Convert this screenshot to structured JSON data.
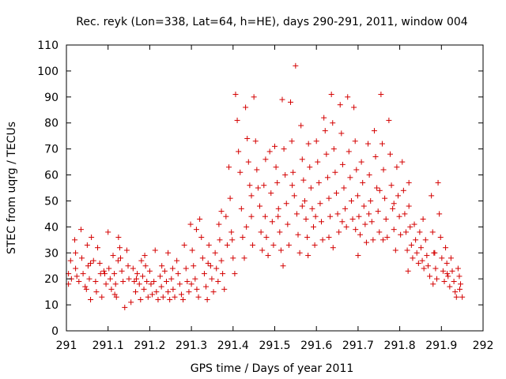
{
  "chart_data": {
    "type": "scatter",
    "title": "Rec. reyk (Lon=338, Lat=64, h=HE), days 290-291, 2011, window 004",
    "xlabel": "GPS time / Days of year 2011",
    "ylabel": "STEC from uqrg / TECUs",
    "xlim": [
      291,
      292
    ],
    "ylim": [
      0,
      110
    ],
    "x_ticks": [
      291,
      291.1,
      291.2,
      291.3,
      291.4,
      291.5,
      291.6,
      291.7,
      291.8,
      291.9,
      292
    ],
    "x_tick_labels": [
      "291",
      "291.1",
      "291.2",
      "291.3",
      "291.4",
      "291.5",
      "291.6",
      "291.7",
      "291.8",
      "291.9",
      "292"
    ],
    "y_ticks": [
      0,
      10,
      20,
      30,
      40,
      50,
      60,
      70,
      80,
      90,
      100,
      110
    ],
    "y_tick_labels": [
      "0",
      "10",
      "20",
      "30",
      "40",
      "50",
      "60",
      "70",
      "80",
      "90",
      "100",
      "110"
    ],
    "grid": false,
    "marker": "plus",
    "marker_color": "#d40000",
    "points": [
      [
        291.005,
        18
      ],
      [
        291.005,
        22
      ],
      [
        291.01,
        27
      ],
      [
        291.012,
        20
      ],
      [
        291.02,
        35
      ],
      [
        291.022,
        24
      ],
      [
        291.025,
        21
      ],
      [
        291.03,
        19
      ],
      [
        291.035,
        39
      ],
      [
        291.037,
        28
      ],
      [
        291.04,
        22
      ],
      [
        291.045,
        17
      ],
      [
        291.05,
        33
      ],
      [
        291.052,
        25
      ],
      [
        291.055,
        20
      ],
      [
        291.058,
        12
      ],
      [
        291.06,
        36
      ],
      [
        291.065,
        27
      ],
      [
        291.07,
        19
      ],
      [
        291.072,
        15
      ],
      [
        291.075,
        32
      ],
      [
        291.08,
        26
      ],
      [
        291.082,
        22
      ],
      [
        291.085,
        13
      ],
      [
        291.09,
        23
      ],
      [
        291.095,
        18
      ],
      [
        291.1,
        38
      ],
      [
        291.102,
        24
      ],
      [
        291.105,
        20
      ],
      [
        291.108,
        16
      ],
      [
        291.112,
        29
      ],
      [
        291.115,
        22
      ],
      [
        291.118,
        18
      ],
      [
        291.12,
        13
      ],
      [
        291.125,
        36
      ],
      [
        291.128,
        32
      ],
      [
        291.13,
        28
      ],
      [
        291.133,
        23
      ],
      [
        291.136,
        19
      ],
      [
        291.14,
        9
      ],
      [
        291.145,
        31
      ],
      [
        291.148,
        25
      ],
      [
        291.15,
        20
      ],
      [
        291.155,
        11
      ],
      [
        291.16,
        24
      ],
      [
        291.163,
        19
      ],
      [
        291.166,
        15
      ],
      [
        291.17,
        22
      ],
      [
        291.175,
        18
      ],
      [
        291.18,
        27
      ],
      [
        291.183,
        21
      ],
      [
        291.186,
        16
      ],
      [
        291.19,
        25
      ],
      [
        291.193,
        19
      ],
      [
        291.196,
        13
      ],
      [
        291.2,
        23
      ],
      [
        291.203,
        18
      ],
      [
        291.206,
        14
      ],
      [
        291.21,
        19
      ],
      [
        291.213,
        31
      ],
      [
        291.216,
        15
      ],
      [
        291.22,
        12
      ],
      [
        291.225,
        21
      ],
      [
        291.228,
        17
      ],
      [
        291.232,
        13
      ],
      [
        291.236,
        23
      ],
      [
        291.24,
        19
      ],
      [
        291.244,
        15
      ],
      [
        291.248,
        12
      ],
      [
        291.252,
        20
      ],
      [
        291.256,
        16
      ],
      [
        291.26,
        13
      ],
      [
        291.265,
        27
      ],
      [
        291.268,
        22
      ],
      [
        291.272,
        18
      ],
      [
        291.276,
        14
      ],
      [
        291.28,
        12
      ],
      [
        291.283,
        33
      ],
      [
        291.287,
        24
      ],
      [
        291.29,
        19
      ],
      [
        291.294,
        15
      ],
      [
        291.298,
        41
      ],
      [
        291.302,
        31
      ],
      [
        291.305,
        25
      ],
      [
        291.309,
        20
      ],
      [
        291.313,
        16
      ],
      [
        291.317,
        13
      ],
      [
        291.32,
        43
      ],
      [
        291.324,
        36
      ],
      [
        291.327,
        28
      ],
      [
        291.331,
        22
      ],
      [
        291.335,
        17
      ],
      [
        291.338,
        12
      ],
      [
        291.342,
        33
      ],
      [
        291.346,
        25
      ],
      [
        291.349,
        20
      ],
      [
        291.353,
        15
      ],
      [
        291.357,
        30
      ],
      [
        291.36,
        24
      ],
      [
        291.364,
        19
      ],
      [
        291.368,
        35
      ],
      [
        291.372,
        27
      ],
      [
        291.375,
        22
      ],
      [
        291.379,
        16
      ],
      [
        291.383,
        44
      ],
      [
        291.386,
        33
      ],
      [
        291.39,
        63
      ],
      [
        291.393,
        51
      ],
      [
        291.396,
        38
      ],
      [
        291.4,
        28
      ],
      [
        291.404,
        22
      ],
      [
        291.406,
        91
      ],
      [
        291.41,
        81
      ],
      [
        291.413,
        69
      ],
      [
        291.417,
        61
      ],
      [
        291.42,
        47
      ],
      [
        291.423,
        36
      ],
      [
        291.427,
        28
      ],
      [
        291.43,
        86
      ],
      [
        291.434,
        74
      ],
      [
        291.437,
        65
      ],
      [
        291.44,
        56
      ],
      [
        291.444,
        44
      ],
      [
        291.447,
        33
      ],
      [
        291.45,
        90
      ],
      [
        291.454,
        73
      ],
      [
        291.457,
        62
      ],
      [
        291.46,
        55
      ],
      [
        291.464,
        48
      ],
      [
        291.467,
        38
      ],
      [
        291.47,
        31
      ],
      [
        291.474,
        56
      ],
      [
        291.477,
        44
      ],
      [
        291.48,
        36
      ],
      [
        291.484,
        29
      ],
      [
        291.488,
        69
      ],
      [
        291.491,
        53
      ],
      [
        291.494,
        42
      ],
      [
        291.497,
        33
      ],
      [
        291.5,
        71
      ],
      [
        291.503,
        63
      ],
      [
        291.506,
        57
      ],
      [
        291.509,
        47
      ],
      [
        291.512,
        38
      ],
      [
        291.515,
        31
      ],
      [
        291.518,
        89
      ],
      [
        291.522,
        70
      ],
      [
        291.525,
        60
      ],
      [
        291.528,
        49
      ],
      [
        291.531,
        41
      ],
      [
        291.534,
        33
      ],
      [
        291.538,
        88
      ],
      [
        291.541,
        73
      ],
      [
        291.544,
        61
      ],
      [
        291.547,
        52
      ],
      [
        291.55,
        102
      ],
      [
        291.553,
        45
      ],
      [
        291.556,
        37
      ],
      [
        291.56,
        30
      ],
      [
        291.563,
        79
      ],
      [
        291.566,
        66
      ],
      [
        291.569,
        58
      ],
      [
        291.572,
        50
      ],
      [
        291.575,
        43
      ],
      [
        291.578,
        36
      ],
      [
        291.581,
        72
      ],
      [
        291.584,
        63
      ],
      [
        291.587,
        55
      ],
      [
        291.59,
        47
      ],
      [
        291.593,
        40
      ],
      [
        291.596,
        33
      ],
      [
        291.6,
        73
      ],
      [
        291.603,
        65
      ],
      [
        291.606,
        57
      ],
      [
        291.609,
        49
      ],
      [
        291.612,
        42
      ],
      [
        291.615,
        35
      ],
      [
        291.618,
        82
      ],
      [
        291.621,
        77
      ],
      [
        291.624,
        68
      ],
      [
        291.627,
        59
      ],
      [
        291.63,
        51
      ],
      [
        291.633,
        44
      ],
      [
        291.636,
        91
      ],
      [
        291.639,
        80
      ],
      [
        291.642,
        70
      ],
      [
        291.645,
        61
      ],
      [
        291.648,
        53
      ],
      [
        291.651,
        45
      ],
      [
        291.654,
        38
      ],
      [
        291.657,
        87
      ],
      [
        291.66,
        76
      ],
      [
        291.663,
        64
      ],
      [
        291.666,
        55
      ],
      [
        291.669,
        47
      ],
      [
        291.672,
        40
      ],
      [
        291.675,
        90
      ],
      [
        291.678,
        69
      ],
      [
        291.681,
        59
      ],
      [
        291.684,
        50
      ],
      [
        291.687,
        43
      ],
      [
        291.69,
        86
      ],
      [
        291.693,
        73
      ],
      [
        291.696,
        62
      ],
      [
        291.699,
        52
      ],
      [
        291.702,
        44
      ],
      [
        291.705,
        37
      ],
      [
        291.708,
        65
      ],
      [
        291.711,
        57
      ],
      [
        291.714,
        48
      ],
      [
        291.717,
        41
      ],
      [
        291.72,
        34
      ],
      [
        291.724,
        72
      ],
      [
        291.727,
        60
      ],
      [
        291.73,
        50
      ],
      [
        291.733,
        42
      ],
      [
        291.736,
        35
      ],
      [
        291.739,
        77
      ],
      [
        291.742,
        67
      ],
      [
        291.745,
        55
      ],
      [
        291.748,
        46
      ],
      [
        291.751,
        38
      ],
      [
        291.755,
        91
      ],
      [
        291.758,
        72
      ],
      [
        291.761,
        62
      ],
      [
        291.764,
        51
      ],
      [
        291.767,
        43
      ],
      [
        291.77,
        36
      ],
      [
        291.774,
        81
      ],
      [
        291.777,
        68
      ],
      [
        291.78,
        56
      ],
      [
        291.783,
        47
      ],
      [
        291.786,
        39
      ],
      [
        291.79,
        31
      ],
      [
        291.793,
        63
      ],
      [
        291.796,
        52
      ],
      [
        291.799,
        44
      ],
      [
        291.802,
        37
      ],
      [
        291.806,
        65
      ],
      [
        291.809,
        54
      ],
      [
        291.812,
        45
      ],
      [
        291.815,
        38
      ],
      [
        291.818,
        31
      ],
      [
        291.822,
        48
      ],
      [
        291.825,
        40
      ],
      [
        291.828,
        33
      ],
      [
        291.831,
        28
      ],
      [
        291.835,
        41
      ],
      [
        291.838,
        35
      ],
      [
        291.841,
        30
      ],
      [
        291.845,
        26
      ],
      [
        291.848,
        38
      ],
      [
        291.851,
        32
      ],
      [
        291.854,
        27
      ],
      [
        291.858,
        24
      ],
      [
        291.862,
        35
      ],
      [
        291.865,
        29
      ],
      [
        291.868,
        25
      ],
      [
        291.872,
        21
      ],
      [
        291.876,
        52
      ],
      [
        291.879,
        38
      ],
      [
        291.882,
        30
      ],
      [
        291.886,
        24
      ],
      [
        291.889,
        20
      ],
      [
        291.892,
        57
      ],
      [
        291.895,
        45
      ],
      [
        291.898,
        36
      ],
      [
        291.901,
        28
      ],
      [
        291.904,
        23
      ],
      [
        291.907,
        19
      ],
      [
        291.91,
        32
      ],
      [
        291.913,
        26
      ],
      [
        291.916,
        21
      ],
      [
        291.92,
        17
      ],
      [
        291.923,
        28
      ],
      [
        291.926,
        23
      ],
      [
        291.93,
        19
      ],
      [
        291.933,
        15
      ],
      [
        291.936,
        13
      ],
      [
        291.94,
        24
      ],
      [
        291.943,
        21
      ],
      [
        291.946,
        18
      ],
      [
        291.95,
        13
      ],
      [
        291.022,
        30
      ],
      [
        291.048,
        16
      ],
      [
        291.092,
        22
      ],
      [
        291.124,
        27
      ],
      [
        291.168,
        20
      ],
      [
        291.188,
        29
      ],
      [
        291.229,
        25
      ],
      [
        291.255,
        24
      ],
      [
        291.3,
        18
      ],
      [
        291.34,
        26
      ],
      [
        291.366,
        41
      ],
      [
        291.398,
        35
      ],
      [
        291.432,
        40
      ],
      [
        291.478,
        66
      ],
      [
        291.508,
        44
      ],
      [
        291.542,
        56
      ],
      [
        291.566,
        48
      ],
      [
        291.598,
        44
      ],
      [
        291.63,
        36
      ],
      [
        291.662,
        42
      ],
      [
        291.694,
        39
      ],
      [
        291.726,
        45
      ],
      [
        291.752,
        54
      ],
      [
        291.786,
        49
      ],
      [
        291.822,
        57
      ],
      [
        291.856,
        43
      ],
      [
        291.884,
        30
      ],
      [
        291.914,
        22
      ],
      [
        291.944,
        16
      ],
      [
        291.058,
        26
      ],
      [
        291.116,
        14
      ],
      [
        291.178,
        12
      ],
      [
        291.244,
        30
      ],
      [
        291.312,
        39
      ],
      [
        291.372,
        46
      ],
      [
        291.444,
        52
      ],
      [
        291.52,
        25
      ],
      [
        291.58,
        29
      ],
      [
        291.64,
        32
      ],
      [
        291.7,
        29
      ],
      [
        291.76,
        35
      ],
      [
        291.82,
        23
      ],
      [
        291.88,
        18
      ]
    ]
  }
}
